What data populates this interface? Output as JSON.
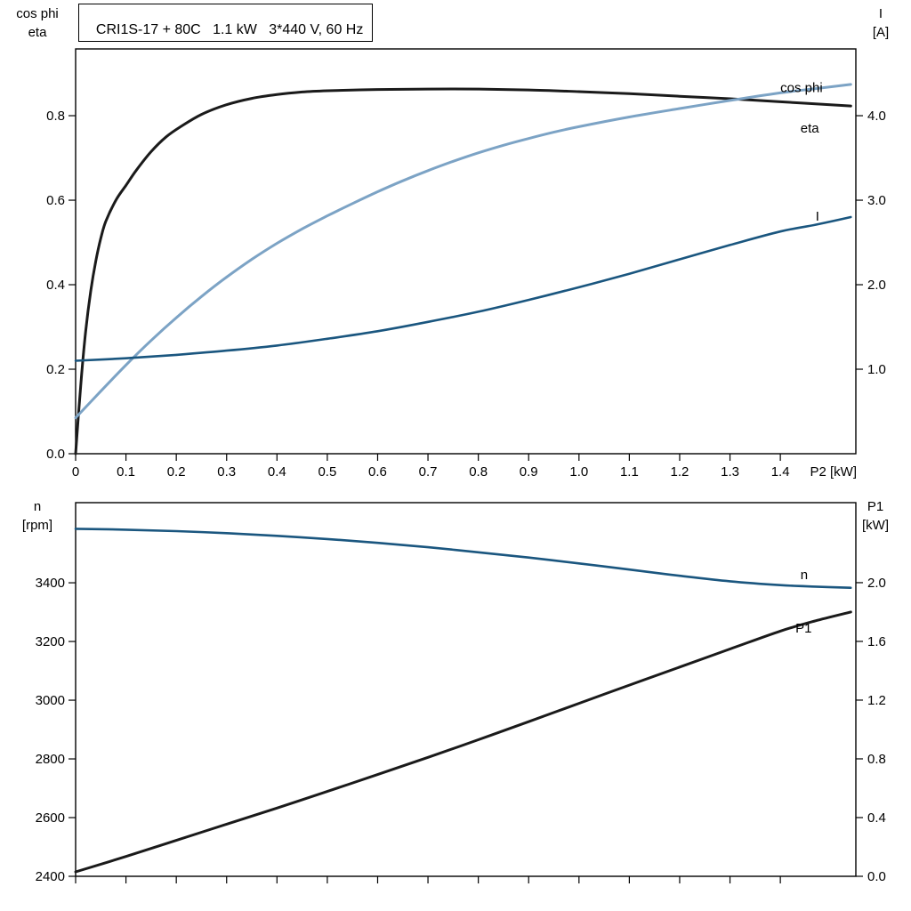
{
  "header": {
    "title": "CRI1S-17 + 80C   1.1 kW   3*440 V, 60 Hz"
  },
  "colors": {
    "frame": "#000000",
    "black": "#1a1a1a",
    "light_blue": "#7CA3C5",
    "dark_blue": "#1A567F"
  },
  "chart_data": [
    {
      "type": "line",
      "grid": false,
      "x_axis": {
        "label": "P2 [kW]",
        "lim": [
          0,
          1.55
        ],
        "ticks": [
          0,
          0.1,
          0.2,
          0.3,
          0.4,
          0.5,
          0.6,
          0.7,
          0.8,
          0.9,
          1.0,
          1.1,
          1.2,
          1.3,
          1.4
        ],
        "tick_labels": [
          "0",
          "0.1",
          "0.2",
          "0.3",
          "0.4",
          "0.5",
          "0.6",
          "0.7",
          "0.8",
          "0.9",
          "1.0",
          "1.1",
          "1.2",
          "1.3",
          "1.4"
        ]
      },
      "left_axis": {
        "title_lines": [
          "cos phi",
          "eta"
        ],
        "lim": [
          0,
          0.958
        ],
        "ticks": [
          0,
          0.2,
          0.4,
          0.6,
          0.8
        ],
        "tick_labels": [
          "0.0",
          "0.2",
          "0.4",
          "0.6",
          "0.8"
        ]
      },
      "right_axis": {
        "title_lines": [
          "I",
          "[A]"
        ],
        "lim": [
          0,
          4.79
        ],
        "ticks": [
          1,
          2,
          3,
          4
        ],
        "tick_labels": [
          "1.0",
          "2.0",
          "3.0",
          "4.0"
        ]
      },
      "series": [
        {
          "name": "eta",
          "axis": "left",
          "color": "black",
          "width": 3,
          "label": {
            "text": "eta",
            "x": 1.44,
            "y": 0.76,
            "color": "black"
          },
          "points": [
            [
              0,
              0
            ],
            [
              0.01,
              0.16
            ],
            [
              0.02,
              0.29
            ],
            [
              0.03,
              0.385
            ],
            [
              0.04,
              0.455
            ],
            [
              0.05,
              0.51
            ],
            [
              0.06,
              0.55
            ],
            [
              0.08,
              0.6
            ],
            [
              0.1,
              0.635
            ],
            [
              0.12,
              0.67
            ],
            [
              0.15,
              0.715
            ],
            [
              0.18,
              0.75
            ],
            [
              0.21,
              0.775
            ],
            [
              0.25,
              0.803
            ],
            [
              0.3,
              0.826
            ],
            [
              0.35,
              0.841
            ],
            [
              0.4,
              0.85
            ],
            [
              0.45,
              0.856
            ],
            [
              0.5,
              0.859
            ],
            [
              0.6,
              0.862
            ],
            [
              0.7,
              0.863
            ],
            [
              0.8,
              0.863
            ],
            [
              0.9,
              0.861
            ],
            [
              1.0,
              0.857
            ],
            [
              1.1,
              0.852
            ],
            [
              1.2,
              0.846
            ],
            [
              1.3,
              0.84
            ],
            [
              1.4,
              0.833
            ],
            [
              1.47,
              0.828
            ],
            [
              1.54,
              0.823
            ]
          ]
        },
        {
          "name": "cos phi",
          "axis": "left",
          "color": "light_blue",
          "width": 3,
          "label": {
            "text": "cos phi",
            "x": 1.4,
            "y": 0.856,
            "color": "light_blue"
          },
          "points": [
            [
              0,
              0.085
            ],
            [
              0.05,
              0.148
            ],
            [
              0.1,
              0.21
            ],
            [
              0.15,
              0.268
            ],
            [
              0.2,
              0.322
            ],
            [
              0.25,
              0.372
            ],
            [
              0.3,
              0.418
            ],
            [
              0.35,
              0.46
            ],
            [
              0.4,
              0.498
            ],
            [
              0.45,
              0.532
            ],
            [
              0.5,
              0.563
            ],
            [
              0.55,
              0.592
            ],
            [
              0.6,
              0.62
            ],
            [
              0.65,
              0.646
            ],
            [
              0.7,
              0.67
            ],
            [
              0.75,
              0.692
            ],
            [
              0.8,
              0.712
            ],
            [
              0.85,
              0.73
            ],
            [
              0.9,
              0.746
            ],
            [
              0.95,
              0.761
            ],
            [
              1.0,
              0.774
            ],
            [
              1.1,
              0.797
            ],
            [
              1.2,
              0.817
            ],
            [
              1.3,
              0.836
            ],
            [
              1.4,
              0.854
            ],
            [
              1.47,
              0.864
            ],
            [
              1.54,
              0.874
            ]
          ]
        },
        {
          "name": "I",
          "axis": "right",
          "color": "dark_blue",
          "width": 2.6,
          "label": {
            "text": "I",
            "x": 1.47,
            "y": 2.76,
            "color": "dark_blue"
          },
          "points": [
            [
              0,
              1.1
            ],
            [
              0.1,
              1.13
            ],
            [
              0.2,
              1.17
            ],
            [
              0.3,
              1.22
            ],
            [
              0.4,
              1.28
            ],
            [
              0.5,
              1.36
            ],
            [
              0.6,
              1.45
            ],
            [
              0.7,
              1.56
            ],
            [
              0.8,
              1.68
            ],
            [
              0.9,
              1.82
            ],
            [
              1.0,
              1.97
            ],
            [
              1.1,
              2.13
            ],
            [
              1.2,
              2.3
            ],
            [
              1.3,
              2.47
            ],
            [
              1.4,
              2.63
            ],
            [
              1.47,
              2.71
            ],
            [
              1.54,
              2.8
            ]
          ]
        }
      ]
    },
    {
      "type": "line",
      "grid": false,
      "x_axis": {
        "label": "",
        "lim": [
          0,
          1.55
        ],
        "ticks": [
          0,
          0.1,
          0.2,
          0.3,
          0.4,
          0.5,
          0.6,
          0.7,
          0.8,
          0.9,
          1.0,
          1.1,
          1.2,
          1.3,
          1.4
        ],
        "tick_labels": []
      },
      "left_axis": {
        "title_lines": [
          "n",
          "[rpm]"
        ],
        "lim": [
          2400,
          3673
        ],
        "ticks": [
          2400,
          2600,
          2800,
          3000,
          3200,
          3400
        ],
        "tick_labels": [
          "2400",
          "2600",
          "2800",
          "3000",
          "3200",
          "3400"
        ]
      },
      "right_axis": {
        "title_lines": [
          "P1",
          "[kW]"
        ],
        "lim": [
          0,
          2.545
        ],
        "ticks": [
          0,
          0.4,
          0.8,
          1.2,
          1.6,
          2.0
        ],
        "tick_labels": [
          "0.0",
          "0.4",
          "0.8",
          "1.2",
          "1.6",
          "2.0"
        ]
      },
      "series": [
        {
          "name": "n",
          "axis": "left",
          "color": "dark_blue",
          "width": 2.6,
          "label": {
            "text": "n",
            "x": 1.44,
            "y": 3412,
            "color": "dark_blue"
          },
          "points": [
            [
              0,
              3584
            ],
            [
              0.1,
              3581
            ],
            [
              0.2,
              3576
            ],
            [
              0.3,
              3569
            ],
            [
              0.4,
              3560
            ],
            [
              0.5,
              3549
            ],
            [
              0.6,
              3536
            ],
            [
              0.7,
              3521
            ],
            [
              0.8,
              3504
            ],
            [
              0.9,
              3486
            ],
            [
              1.0,
              3466
            ],
            [
              1.1,
              3445
            ],
            [
              1.2,
              3424
            ],
            [
              1.3,
              3405
            ],
            [
              1.4,
              3392
            ],
            [
              1.47,
              3387
            ],
            [
              1.54,
              3383
            ]
          ]
        },
        {
          "name": "P1",
          "axis": "right",
          "color": "black",
          "width": 3,
          "label": {
            "text": "P1",
            "x": 1.43,
            "y": 1.66,
            "color": "black"
          },
          "points": [
            [
              0,
              0.03
            ],
            [
              0.1,
              0.135
            ],
            [
              0.2,
              0.245
            ],
            [
              0.3,
              0.355
            ],
            [
              0.4,
              0.465
            ],
            [
              0.5,
              0.578
            ],
            [
              0.6,
              0.693
            ],
            [
              0.7,
              0.81
            ],
            [
              0.8,
              0.93
            ],
            [
              0.9,
              1.053
            ],
            [
              1.0,
              1.178
            ],
            [
              1.1,
              1.302
            ],
            [
              1.2,
              1.425
            ],
            [
              1.3,
              1.548
            ],
            [
              1.4,
              1.67
            ],
            [
              1.47,
              1.74
            ],
            [
              1.54,
              1.8
            ]
          ]
        }
      ]
    }
  ]
}
